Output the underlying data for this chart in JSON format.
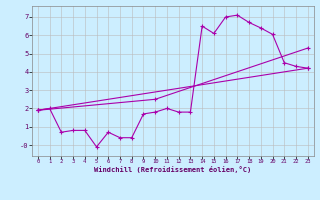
{
  "xlabel": "Windchill (Refroidissement éolien,°C)",
  "bg_color": "#cceeff",
  "line_color": "#aa00aa",
  "grid_color": "#bbbbbb",
  "xlim": [
    -0.5,
    23.5
  ],
  "ylim": [
    -0.6,
    7.6
  ],
  "xticks": [
    0,
    1,
    2,
    3,
    4,
    5,
    6,
    7,
    8,
    9,
    10,
    11,
    12,
    13,
    14,
    15,
    16,
    17,
    18,
    19,
    20,
    21,
    22,
    23
  ],
  "yticks": [
    0,
    1,
    2,
    3,
    4,
    5,
    6,
    7
  ],
  "ytick_labels": [
    "-0",
    "1",
    "2",
    "3",
    "4",
    "5",
    "6",
    "7"
  ],
  "line1_x": [
    0,
    1,
    2,
    3,
    4,
    5,
    6,
    7,
    8,
    9,
    10,
    11,
    12,
    13,
    14,
    15,
    16,
    17,
    18,
    19,
    20,
    21,
    22,
    23
  ],
  "line1_y": [
    1.9,
    2.0,
    0.7,
    0.8,
    0.8,
    -0.1,
    0.7,
    0.4,
    0.4,
    1.7,
    1.8,
    2.0,
    1.8,
    1.8,
    6.5,
    6.1,
    7.0,
    7.1,
    6.7,
    6.4,
    6.05,
    4.5,
    4.3,
    4.2
  ],
  "line2_x": [
    0,
    10,
    23
  ],
  "line2_y": [
    1.9,
    2.5,
    5.3
  ],
  "line3_x": [
    0,
    23
  ],
  "line3_y": [
    1.9,
    4.2
  ],
  "marker": "+"
}
